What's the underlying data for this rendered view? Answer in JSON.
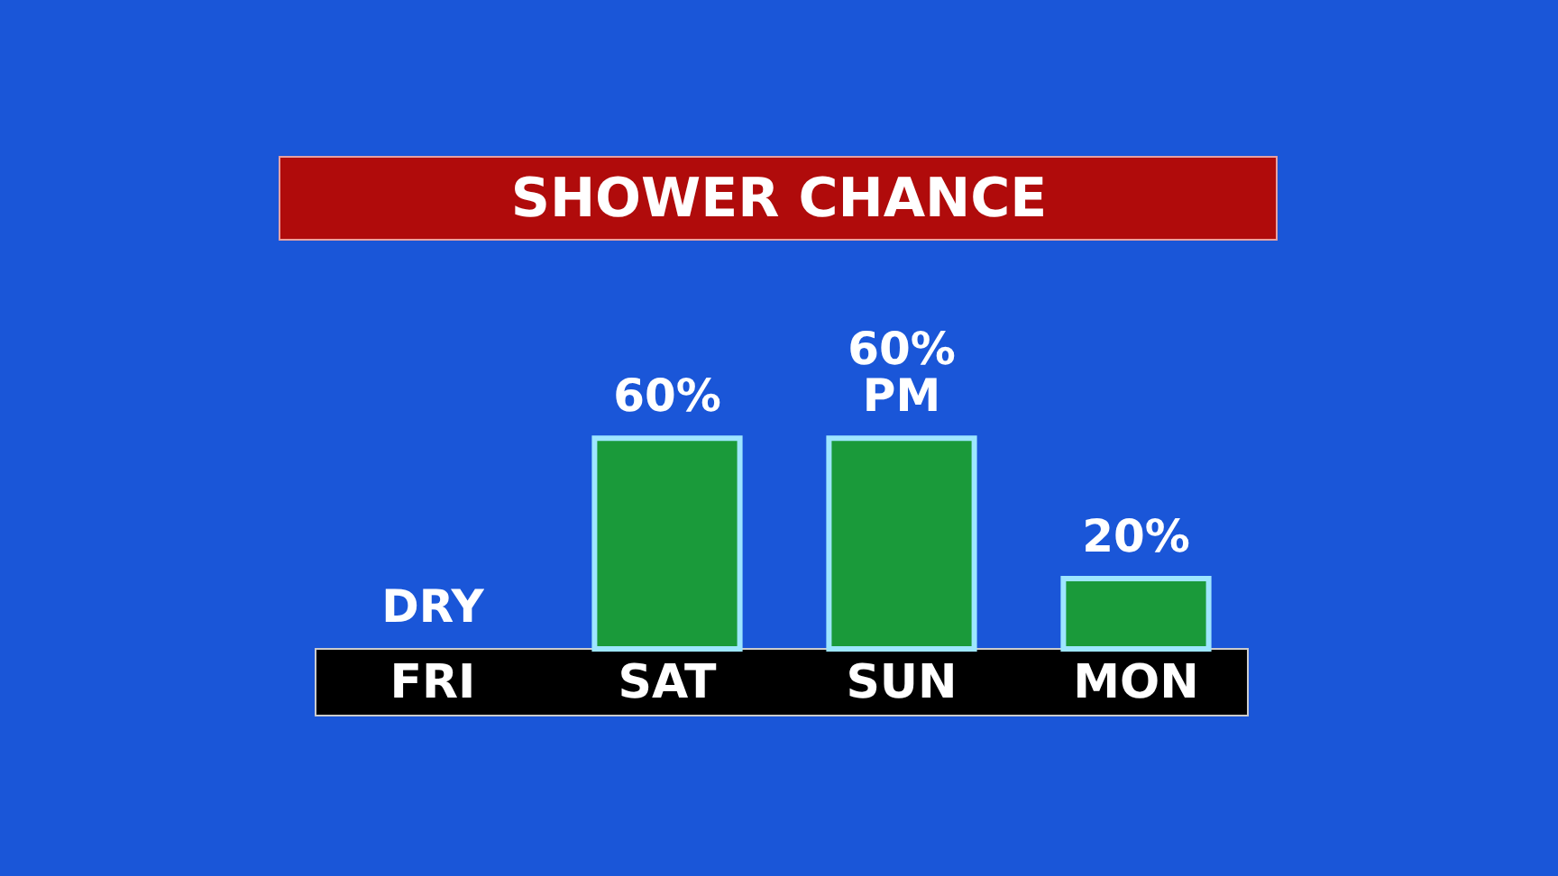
{
  "chart_data": {
    "type": "bar",
    "title": "SHOWER CHANCE",
    "categories": [
      "FRI",
      "SAT",
      "SUN",
      "MON"
    ],
    "values": [
      0,
      60,
      60,
      20
    ],
    "value_labels": [
      "DRY",
      "60%",
      "60%\nPM",
      "20%"
    ],
    "color": "#1a9a3a"
  }
}
